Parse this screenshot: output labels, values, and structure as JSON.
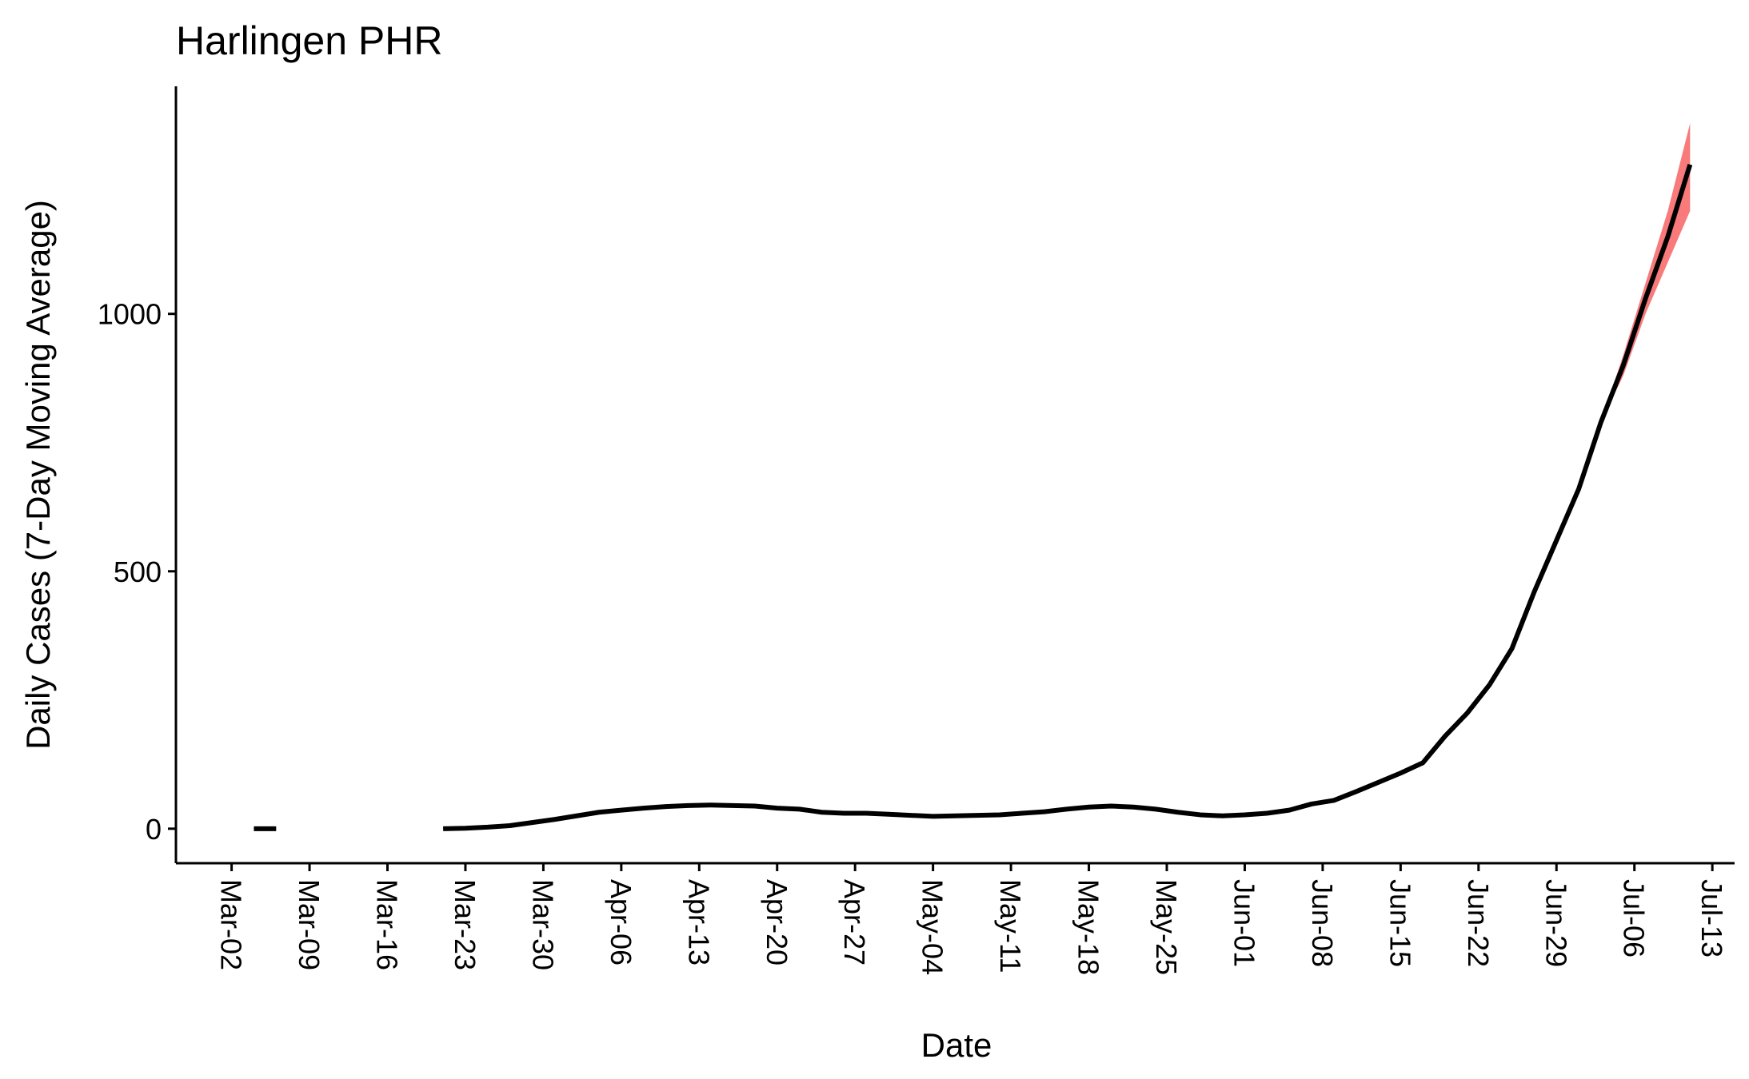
{
  "chart_data": {
    "type": "line",
    "title": "Harlingen PHR",
    "x_label": "Date",
    "y_label": "Daily Cases (7-Day Moving Average)",
    "x": [
      "Mar-04",
      "Mar-05",
      "Mar-06",
      "Mar-07",
      "Mar-21",
      "Mar-23",
      "Mar-25",
      "Mar-27",
      "Mar-29",
      "Mar-31",
      "Apr-02",
      "Apr-04",
      "Apr-06",
      "Apr-08",
      "Apr-10",
      "Apr-12",
      "Apr-14",
      "Apr-16",
      "Apr-18",
      "Apr-20",
      "Apr-22",
      "Apr-24",
      "Apr-26",
      "Apr-28",
      "Apr-30",
      "May-02",
      "May-04",
      "May-06",
      "May-08",
      "May-10",
      "May-12",
      "May-14",
      "May-16",
      "May-18",
      "May-20",
      "May-22",
      "May-24",
      "May-26",
      "May-28",
      "May-30",
      "Jun-01",
      "Jun-03",
      "Jun-05",
      "Jun-07",
      "Jun-09",
      "Jun-11",
      "Jun-13",
      "Jun-15",
      "Jun-17",
      "Jun-19",
      "Jun-21",
      "Jun-23",
      "Jun-25",
      "Jun-27",
      "Jun-29",
      "Jul-01",
      "Jul-03",
      "Jul-05",
      "Jul-07",
      "Jul-09",
      "Jul-11"
    ],
    "series": [
      {
        "color": "#000000",
        "band_color": "#f87a7a",
        "values": [
          0,
          0,
          0,
          null,
          0,
          1,
          3,
          6,
          12,
          18,
          25,
          32,
          36,
          40,
          43,
          45,
          46,
          45,
          44,
          40,
          38,
          32,
          30,
          30,
          28,
          26,
          24,
          25,
          26,
          27,
          30,
          33,
          38,
          42,
          44,
          42,
          38,
          32,
          27,
          25,
          27,
          30,
          36,
          48,
          55,
          72,
          90,
          108,
          128,
          180,
          225,
          280,
          350,
          460,
          560,
          660,
          790,
          900,
          1030,
          1150,
          1290
        ],
        "lower": [
          null,
          null,
          null,
          null,
          null,
          null,
          null,
          null,
          null,
          null,
          null,
          null,
          null,
          null,
          null,
          null,
          null,
          null,
          null,
          null,
          null,
          null,
          null,
          null,
          null,
          null,
          null,
          null,
          null,
          null,
          null,
          null,
          null,
          null,
          null,
          null,
          null,
          null,
          null,
          null,
          null,
          null,
          null,
          null,
          null,
          null,
          null,
          null,
          null,
          null,
          null,
          null,
          null,
          null,
          null,
          null,
          790,
          880,
          1000,
          1100,
          1200
        ],
        "upper": [
          null,
          null,
          null,
          null,
          null,
          null,
          null,
          null,
          null,
          null,
          null,
          null,
          null,
          null,
          null,
          null,
          null,
          null,
          null,
          null,
          null,
          null,
          null,
          null,
          null,
          null,
          null,
          null,
          null,
          null,
          null,
          null,
          null,
          null,
          null,
          null,
          null,
          null,
          null,
          null,
          null,
          null,
          null,
          null,
          null,
          null,
          null,
          null,
          null,
          null,
          null,
          null,
          null,
          null,
          null,
          null,
          790,
          920,
          1060,
          1200,
          1370
        ]
      }
    ],
    "xlim": [
      "Feb-26",
      "Jul-15"
    ],
    "xticks": [
      "Mar-02",
      "Mar-09",
      "Mar-16",
      "Mar-23",
      "Mar-30",
      "Apr-06",
      "Apr-13",
      "Apr-20",
      "Apr-27",
      "May-04",
      "May-11",
      "May-18",
      "May-25",
      "Jun-01",
      "Jun-08",
      "Jun-15",
      "Jun-22",
      "Jun-29",
      "Jul-06",
      "Jul-13"
    ],
    "ylim": [
      -67,
      1442
    ],
    "yticks": [
      0,
      500,
      1000
    ],
    "grid": false
  }
}
